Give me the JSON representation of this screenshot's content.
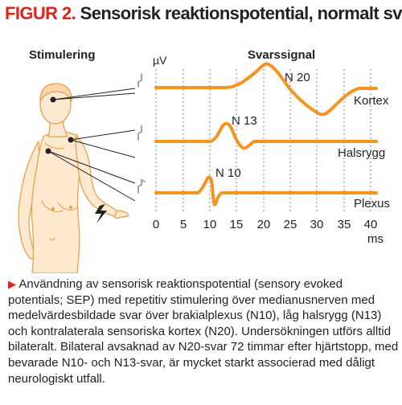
{
  "title": {
    "figure_label": "FIGUR 2.",
    "text": "Sensorisk reaktionspotential, normalt svar"
  },
  "labels": {
    "stimulation": "Stimulering",
    "response_signal": "Svarssignal",
    "unit_y": "µV",
    "unit_x": "ms",
    "peaks": [
      "N 20",
      "N 13",
      "N 10"
    ],
    "traces": [
      "Kortex",
      "Halsrygg",
      "Plexus"
    ]
  },
  "axis": {
    "ticks": [
      "0",
      "5",
      "10",
      "15",
      "20",
      "25",
      "30",
      "35",
      "40"
    ]
  },
  "colors": {
    "accent_red": "#e2231a",
    "signal_orange": "#f7941d",
    "body_fill": "#fde9d0",
    "body_outline": "#e8a24a",
    "text": "#222222",
    "grid_gray": "#9a9a9a"
  },
  "caption": {
    "marker": "▶",
    "text": "Användning av sensorisk reaktionspotential (sensory evoked potentials; SEP) med repetitiv stimulering över medianusnerven med medelvärdesbildade svar över brakialplexus (N10), låg halsrygg (N13) och kontralaterala sensoriska kortex (N20). Undersökningen utförs alltid bilateralt. Bilateral avsaknad av N20-svar 72 timmar efter hjärtstopp, med bevarade N10- och N13-svar, är mycket starkt associerad med dåligt neurologiskt utfall."
  }
}
